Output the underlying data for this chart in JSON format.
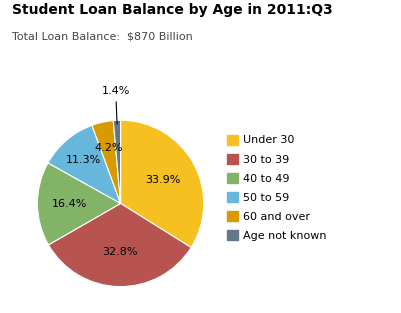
{
  "title": "Student Loan Balance by Age in 2011:Q3",
  "subtitle": "Total Loan Balance:  $870 Billion",
  "labels": [
    "Under 30",
    "30 to 39",
    "40 to 49",
    "50 to 59",
    "60 and over",
    "Age not known"
  ],
  "values": [
    33.9,
    32.8,
    16.4,
    11.3,
    4.2,
    1.4
  ],
  "colors": [
    "#F5C020",
    "#B85450",
    "#82B366",
    "#67B7DC",
    "#D79B00",
    "#647687"
  ],
  "pct_labels": [
    "33.9%",
    "32.8%",
    "16.4%",
    "11.3%",
    "4.2%",
    "1.4%"
  ],
  "background_color": "#FFFFFF",
  "startangle": 90,
  "title_fontsize": 10,
  "subtitle_fontsize": 8,
  "legend_fontsize": 8
}
